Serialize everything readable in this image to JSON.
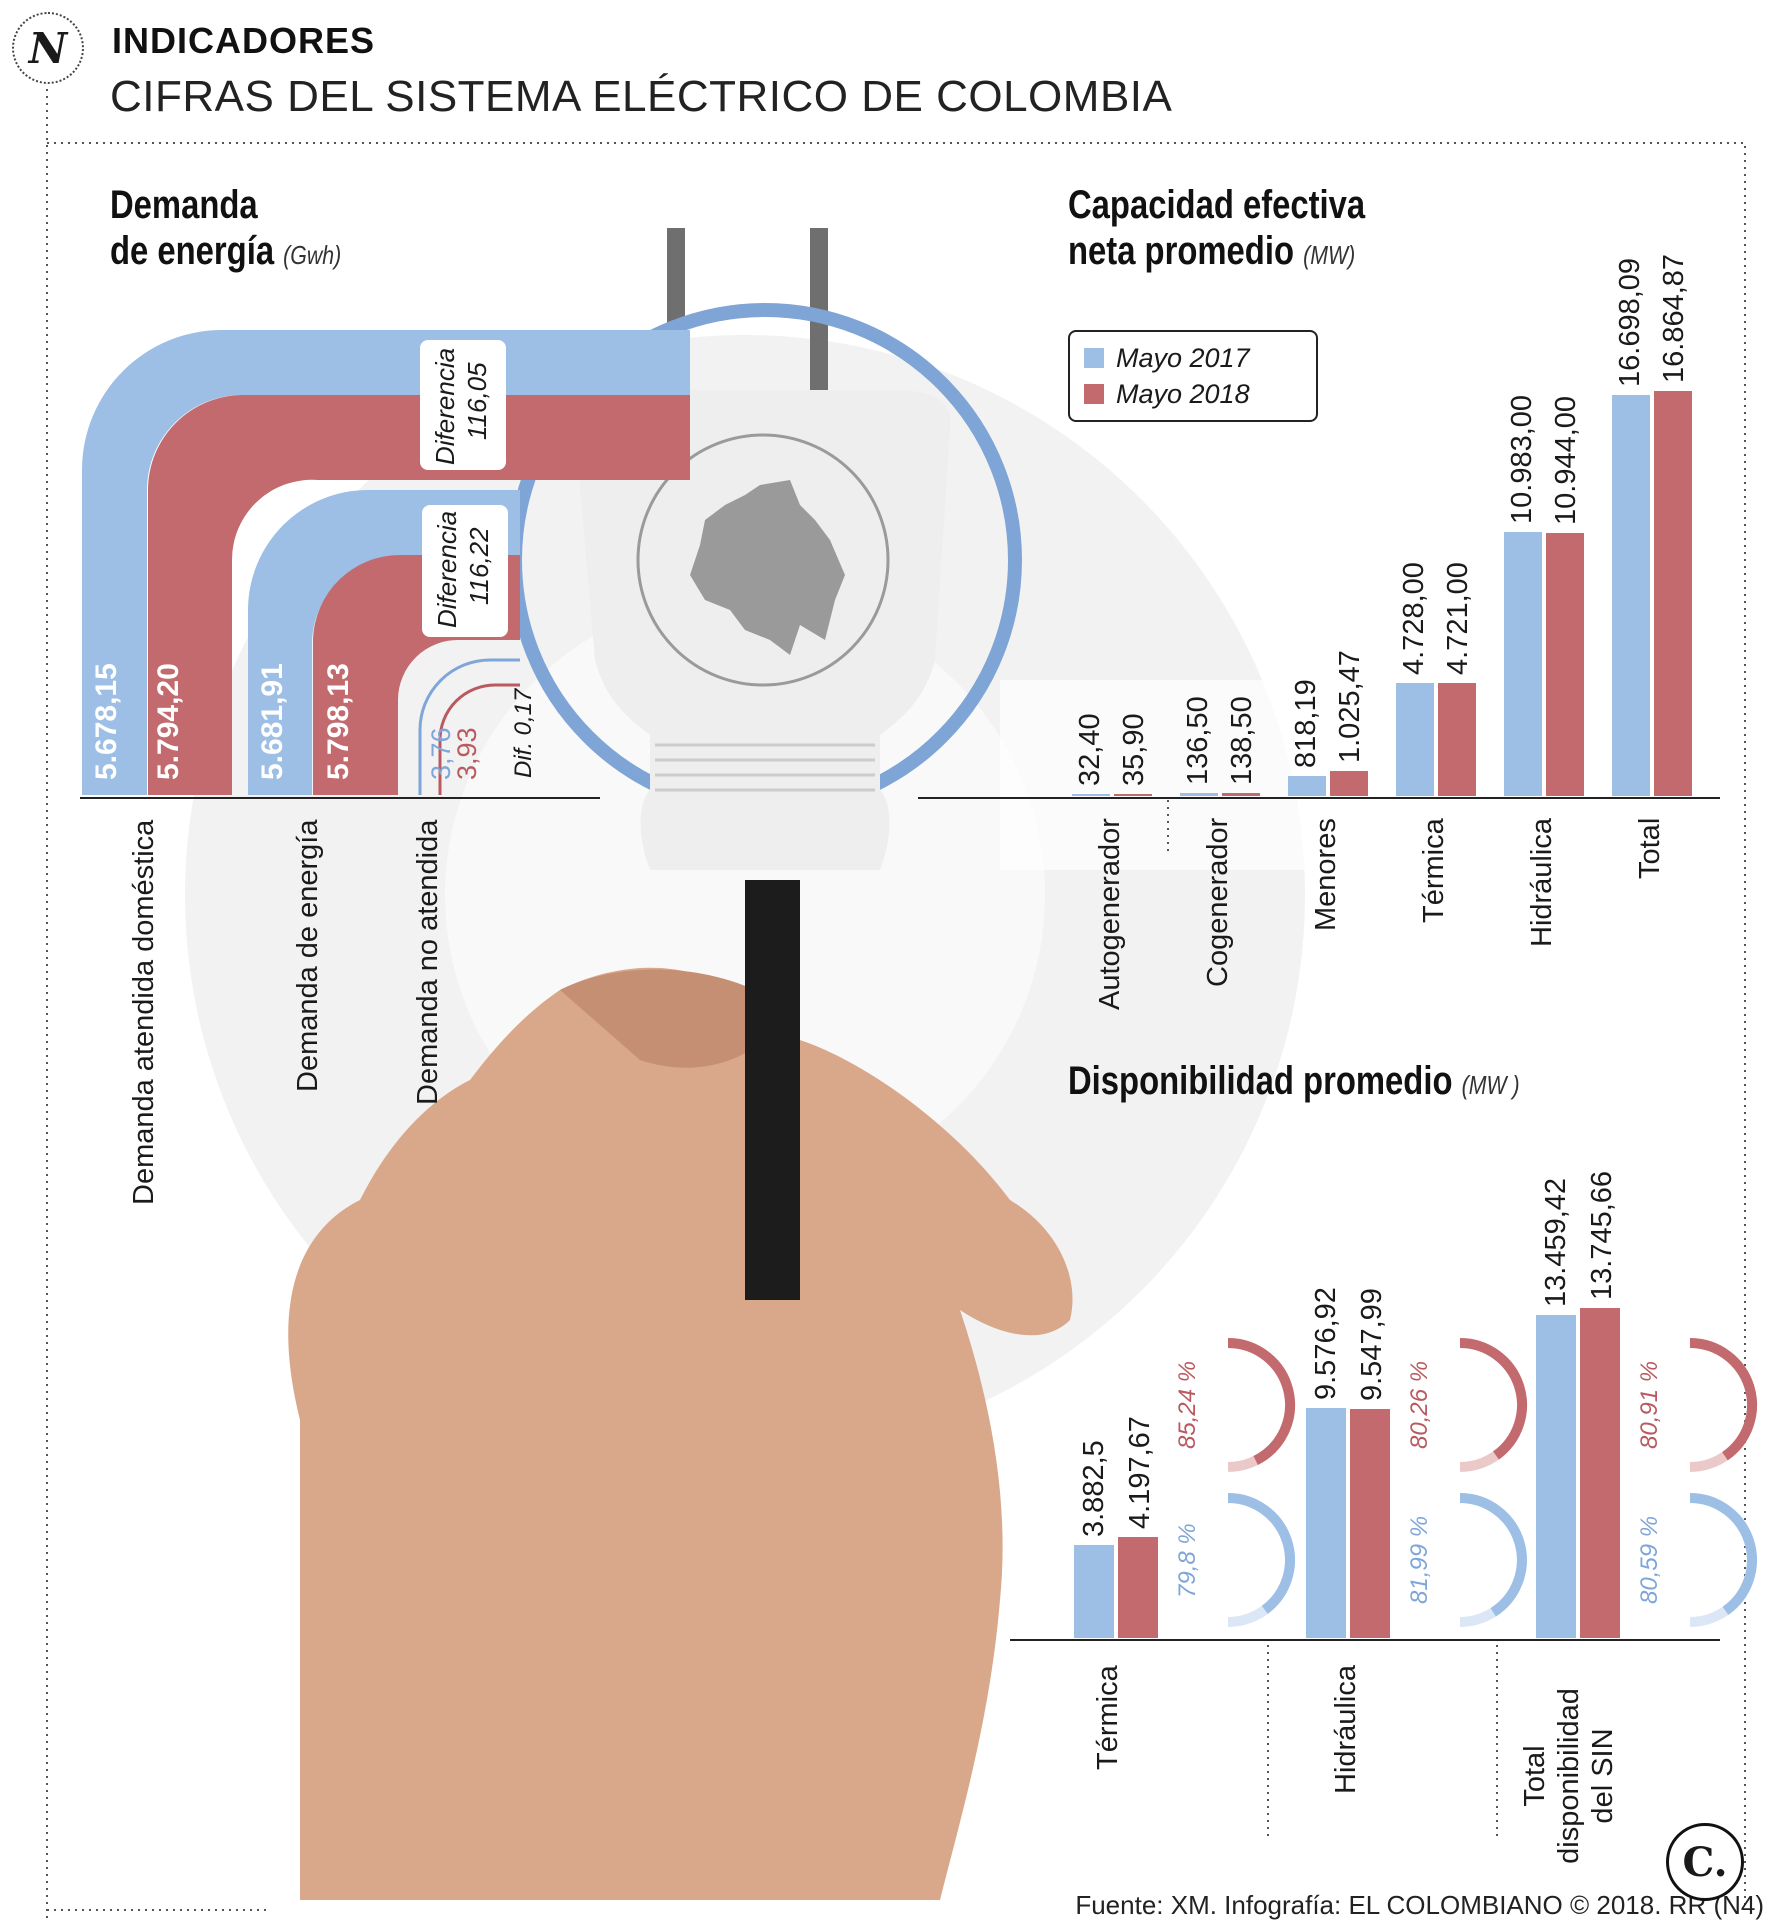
{
  "header": {
    "kicker": "INDICADORES",
    "title": "CIFRAS DEL SISTEMA ELÉCTRICO DE COLOMBIA",
    "logo_letter": "N"
  },
  "colors": {
    "may_2017": "#9dbfe6",
    "may_2018": "#c26a6e",
    "text_2017": "#7fa6d8",
    "text_2018": "#b95a60"
  },
  "legend": {
    "items": [
      {
        "label": "Mayo 2017"
      },
      {
        "label": "Mayo 2018"
      }
    ]
  },
  "demanda": {
    "title_line1": "Demanda",
    "title_line2": "de energía",
    "unit": "(Gwh)",
    "diff_label": "Diferencia",
    "diff_1_value": "116,05",
    "diff_2_value": "116,22",
    "dif_small": "Dif. 0,17"
  },
  "capacidad": {
    "title_line1": "Capacidad efectiva",
    "title_line2": "neta promedio",
    "unit": "(MW)"
  },
  "disponibilidad": {
    "title": "Disponibilidad promedio",
    "unit": "(MW )"
  },
  "footer": {
    "source": "Fuente: XM. Infografía: EL COLOMBIANO © 2018. RR (N4)",
    "brand_letter": "C."
  },
  "chart_data": [
    {
      "type": "bar",
      "title": "Demanda de energía (Gwh)",
      "categories": [
        "Demanda atendida doméstica",
        "Demanda de energía",
        "Demanda no atendida"
      ],
      "series": [
        {
          "name": "Mayo 2017",
          "values": [
            5678.15,
            5681.91,
            3.76
          ],
          "labels": [
            "5.678,15",
            "5.681,91",
            "3,76"
          ]
        },
        {
          "name": "Mayo 2018",
          "values": [
            5794.2,
            5798.13,
            3.93
          ],
          "labels": [
            "5.794,20",
            "5.798,13",
            "3,93"
          ]
        }
      ],
      "annotations": [
        "Diferencia 116,05",
        "Diferencia 116,22",
        "Dif. 0,17"
      ]
    },
    {
      "type": "bar",
      "title": "Capacidad efectiva neta promedio (MW)",
      "categories": [
        "Autogenerador",
        "Cogenerador",
        "Menores",
        "Térmica",
        "Hidráulica",
        "Total"
      ],
      "ylim": [
        0,
        17500
      ],
      "series": [
        {
          "name": "Mayo 2017",
          "values": [
            32.4,
            136.5,
            818.19,
            4728.0,
            10983.0,
            16698.09
          ],
          "labels": [
            "32,40",
            "136,50",
            "818,19",
            "4.728,00",
            "10.983,00",
            "16.698,09"
          ]
        },
        {
          "name": "Mayo 2018",
          "values": [
            35.9,
            138.5,
            1025.47,
            4721.0,
            10944.0,
            16864.87
          ],
          "labels": [
            "35,90",
            "138,50",
            "1.025,47",
            "4.721,00",
            "10.944,00",
            "16.864,87"
          ]
        }
      ]
    },
    {
      "type": "bar",
      "title": "Disponibilidad promedio (MW)",
      "categories": [
        "Térmica",
        "Hidráulica",
        "Total disponibilidad del SIN"
      ],
      "ylim": [
        0,
        17500
      ],
      "series": [
        {
          "name": "Mayo 2017",
          "values": [
            3882.5,
            9576.92,
            13459.42
          ],
          "labels": [
            "3.882,5",
            "9.576,92",
            "13.459,42"
          ],
          "pct_values": [
            79.8,
            81.99,
            80.59
          ],
          "pct_labels": [
            "79,8 %",
            "81,99 %",
            "80,59 %"
          ]
        },
        {
          "name": "Mayo 2018",
          "values": [
            4197.67,
            9547.99,
            13745.66
          ],
          "labels": [
            "4.197,67",
            "9.547,99",
            "13.745,66"
          ],
          "pct_values": [
            85.24,
            80.26,
            80.91
          ],
          "pct_labels": [
            "85,24 %",
            "80,26 %",
            "80,91 %"
          ]
        }
      ]
    }
  ]
}
